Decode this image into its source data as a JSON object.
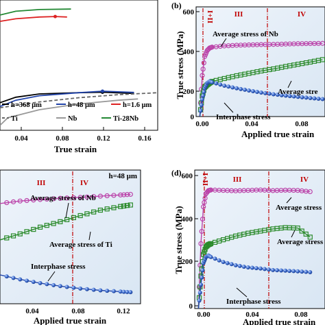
{
  "figure": {
    "panels": {
      "a": {
        "xlabel": "True strain",
        "xticks": [
          "0.04",
          "0.08",
          "0.12",
          "0.16"
        ],
        "legend": [
          {
            "label": "h=368 μm",
            "color": "#000000",
            "style": "solid"
          },
          {
            "label": "h=48 μm",
            "color": "#2244aa",
            "style": "solid"
          },
          {
            "label": "h=1.6 μm",
            "color": "#dd2222",
            "style": "solid"
          },
          {
            "label": "Ti",
            "color": "#666666",
            "style": "dashed"
          },
          {
            "label": "Nb",
            "color": "#999999",
            "style": "solid"
          },
          {
            "label": "Ti-28Nb",
            "color": "#228833",
            "style": "solid"
          }
        ]
      },
      "b": {
        "panel_label": "(b)",
        "xlabel": "Applied true strain",
        "ylabel": "True stress (MPa)",
        "xticks": [
          "0.00",
          "0.04",
          "0.08"
        ],
        "yticks": [
          "0",
          "200",
          "400",
          "600"
        ],
        "regions": [
          "I+II",
          "III",
          "IV"
        ],
        "annotations": [
          "Average stress of Nb",
          "Average stre",
          "Interphase stress"
        ]
      },
      "c": {
        "region_header": "h=48 μm",
        "xlabel": "Applied true strain",
        "xticks": [
          "0.04",
          "0.08",
          "0.12"
        ],
        "regions": [
          "III",
          "IV"
        ],
        "annotations": [
          "Average stress of Nb",
          "Average stress of Ti",
          "Interphase stress"
        ]
      },
      "d": {
        "panel_label": "(d)",
        "xlabel": "Applied true strain",
        "ylabel": "True stress (MPa)",
        "xticks": [
          "0.00",
          "0.04",
          "0.08"
        ],
        "yticks": [
          "0",
          "200",
          "400",
          "600"
        ],
        "regions": [
          "I+II",
          "III",
          "IV"
        ],
        "annotations": [
          "Average stress",
          "Average stress",
          "Interphase stress"
        ]
      }
    }
  },
  "chart_data": [
    {
      "panel": "a",
      "type": "line",
      "xlabel": "True strain",
      "ylabel": "",
      "xlim": [
        0.0,
        0.2
      ],
      "series": [
        {
          "name": "h=368 μm",
          "color": "#000000",
          "x": [
            0.0,
            0.02,
            0.05,
            0.1,
            0.13,
            0.17
          ],
          "y": [
            290,
            312,
            325,
            330,
            332,
            327
          ]
        },
        {
          "name": "h=48 μm",
          "color": "#2244aa",
          "x": [
            0.0,
            0.02,
            0.05,
            0.1,
            0.13,
            0.17
          ],
          "y": [
            275,
            300,
            318,
            330,
            336,
            331
          ]
        },
        {
          "name": "h=1.6 μm",
          "color": "#dd2222",
          "x": [
            0.0,
            0.02,
            0.05,
            0.07,
            0.085
          ],
          "y": [
            615,
            625,
            632,
            634,
            632
          ]
        },
        {
          "name": "Ti",
          "color": "#666666",
          "x": [
            0.0,
            0.05,
            0.1,
            0.15,
            0.2
          ],
          "y": [
            270,
            293,
            310,
            322,
            330
          ]
        },
        {
          "name": "Nb",
          "color": "#999999",
          "x": [
            0.0,
            0.01,
            0.05,
            0.1,
            0.15,
            0.175
          ],
          "y": [
            200,
            230,
            262,
            285,
            300,
            305
          ]
        },
        {
          "name": "Ti-28Nb",
          "color": "#228833",
          "x": [
            0.0,
            0.02,
            0.05,
            0.09
          ],
          "y": [
            640,
            655,
            662,
            664
          ]
        }
      ]
    },
    {
      "panel": "b",
      "type": "line",
      "xlabel": "Applied true strain",
      "ylabel": "True stress (MPa)",
      "xlim": [
        -0.003,
        0.102
      ],
      "ylim": [
        0,
        600
      ],
      "region_boundaries": [
        0.008,
        0.06
      ],
      "series": [
        {
          "name": "Average stress of Nb",
          "color": "#bb44aa",
          "marker": "circle",
          "x": [
            0.0,
            0.002,
            0.004,
            0.006,
            0.008,
            0.01,
            0.02,
            0.03,
            0.04,
            0.05,
            0.06,
            0.07,
            0.08,
            0.09,
            0.1
          ],
          "y": [
            0,
            240,
            350,
            385,
            400,
            405,
            412,
            416,
            418,
            420,
            421,
            423,
            425,
            426,
            427
          ]
        },
        {
          "name": "Average stress of Ti",
          "color": "#2a8a2a",
          "marker": "square",
          "x": [
            0.0,
            0.002,
            0.004,
            0.006,
            0.008,
            0.01,
            0.02,
            0.03,
            0.04,
            0.05,
            0.06,
            0.07,
            0.08,
            0.09,
            0.1
          ],
          "y": [
            0,
            120,
            170,
            185,
            195,
            205,
            222,
            238,
            252,
            266,
            278,
            292,
            305,
            318,
            332
          ]
        },
        {
          "name": "Interphase stress",
          "color": "#2244aa",
          "marker": "sphere",
          "x": [
            0.0,
            0.002,
            0.004,
            0.006,
            0.008,
            0.01,
            0.02,
            0.03,
            0.04,
            0.05,
            0.06,
            0.07,
            0.08,
            0.09,
            0.1
          ],
          "y": [
            0,
            100,
            165,
            195,
            205,
            200,
            180,
            165,
            152,
            140,
            130,
            122,
            115,
            108,
            102
          ]
        }
      ]
    },
    {
      "panel": "c",
      "type": "line",
      "xlabel": "Applied true strain",
      "ylabel": "",
      "xlim": [
        0.0,
        0.14
      ],
      "region_boundaries": [
        0.06
      ],
      "series": [
        {
          "name": "Average stress of Nb",
          "color": "#bb44aa",
          "marker": "circle",
          "x": [
            0.0,
            0.02,
            0.04,
            0.06,
            0.08,
            0.1,
            0.12,
            0.13
          ],
          "y": [
            390,
            398,
            403,
            407,
            410,
            414,
            418,
            420
          ]
        },
        {
          "name": "Average stress of Ti",
          "color": "#2a8a2a",
          "marker": "square",
          "x": [
            0.0,
            0.02,
            0.04,
            0.06,
            0.08,
            0.1,
            0.12,
            0.13
          ],
          "y": [
            270,
            290,
            312,
            330,
            350,
            368,
            380,
            385
          ]
        },
        {
          "name": "Interphase stress",
          "color": "#2244aa",
          "marker": "sphere",
          "x": [
            0.0,
            0.02,
            0.04,
            0.06,
            0.08,
            0.1,
            0.12,
            0.13
          ],
          "y": [
            155,
            140,
            128,
            118,
            110,
            104,
            100,
            98
          ]
        }
      ]
    },
    {
      "panel": "d",
      "type": "line",
      "xlabel": "Applied true strain",
      "ylabel": "True stress (MPa)",
      "xlim": [
        -0.003,
        0.102
      ],
      "ylim": [
        0,
        700
      ],
      "region_boundaries": [
        0.008,
        0.06
      ],
      "series": [
        {
          "name": "Average stress of Nb",
          "color": "#bb44aa",
          "marker": "circle",
          "x": [
            0.0,
            0.002,
            0.004,
            0.006,
            0.008,
            0.01,
            0.02,
            0.03,
            0.04,
            0.05,
            0.06,
            0.07,
            0.08,
            0.09
          ],
          "y": [
            0,
            300,
            470,
            530,
            545,
            548,
            546,
            544,
            546,
            548,
            545,
            547,
            546,
            540
          ]
        },
        {
          "name": "Average stress of Ti",
          "color": "#2a8a2a",
          "marker": "square",
          "x": [
            0.0,
            0.002,
            0.004,
            0.006,
            0.008,
            0.01,
            0.02,
            0.03,
            0.04,
            0.05,
            0.06,
            0.07,
            0.08,
            0.09
          ],
          "y": [
            0,
            150,
            250,
            285,
            295,
            300,
            318,
            335,
            348,
            358,
            368,
            374,
            372,
            330
          ]
        },
        {
          "name": "Interphase stress",
          "color": "#2244aa",
          "marker": "sphere",
          "x": [
            0.0,
            0.002,
            0.004,
            0.006,
            0.008,
            0.01,
            0.02,
            0.03,
            0.04,
            0.05,
            0.06,
            0.07,
            0.08,
            0.09
          ],
          "y": [
            0,
            110,
            210,
            238,
            245,
            238,
            215,
            200,
            190,
            185,
            178,
            175,
            172,
            168
          ]
        }
      ]
    }
  ]
}
